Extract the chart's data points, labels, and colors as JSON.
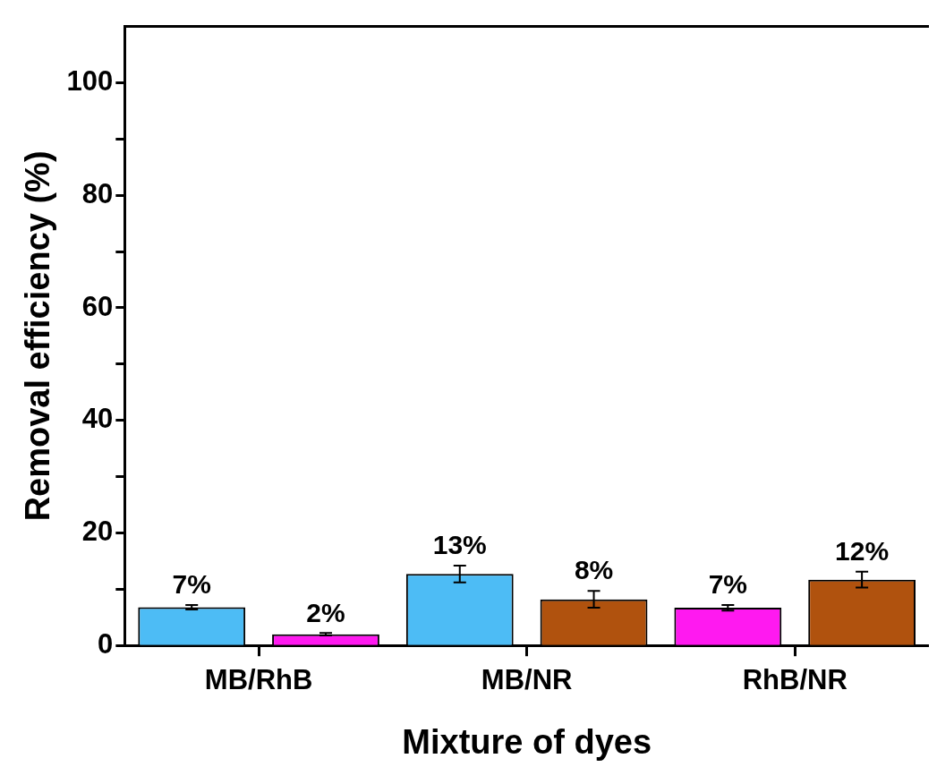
{
  "chart_data": {
    "type": "bar",
    "xlabel": "Mixture of dyes",
    "ylabel": "Removal efficiency (%)",
    "categories": [
      "MB/RhB",
      "MB/NR",
      "RhB/NR"
    ],
    "series": [
      {
        "colors": [
          "#4dbcf5",
          "#4dbcf5",
          "#ff19f0"
        ],
        "values": [
          6.8,
          12.7,
          6.7
        ],
        "errors": [
          0.4,
          1.5,
          0.5
        ],
        "value_labels": [
          "7%",
          "13%",
          "7%"
        ]
      },
      {
        "colors": [
          "#ff19f0",
          "#b0520e",
          "#b0520e"
        ],
        "values": [
          2.0,
          8.2,
          11.7
        ],
        "errors": [
          0.2,
          1.5,
          1.4
        ],
        "value_labels": [
          "2%",
          "8%",
          "12%"
        ]
      }
    ],
    "ylim": [
      0,
      110
    ],
    "yticks": [
      0,
      {
        "value": 10,
        "label": null
      },
      20,
      {
        "value": 30,
        "label": null
      },
      40,
      {
        "value": 50,
        "label": null
      },
      60,
      {
        "value": 70,
        "label": null
      },
      80,
      {
        "value": 90,
        "label": null
      },
      100
    ],
    "grid": false,
    "legend": false
  }
}
